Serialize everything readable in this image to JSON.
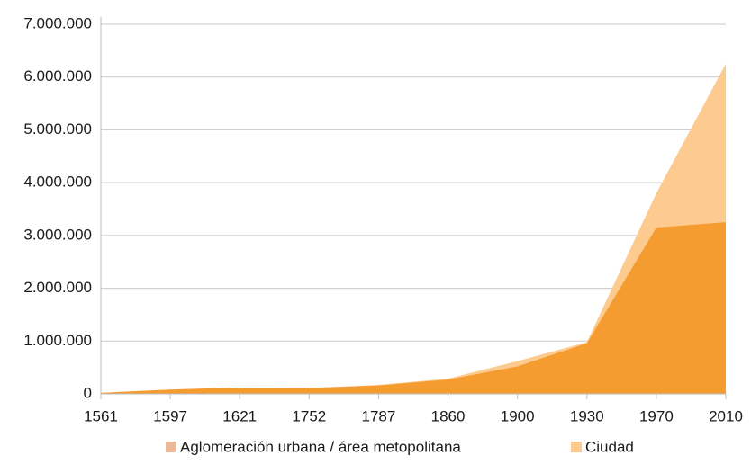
{
  "chart_data": {
    "type": "area",
    "categories": [
      "1561",
      "1597",
      "1621",
      "1752",
      "1787",
      "1860",
      "1900",
      "1930",
      "1970",
      "2010"
    ],
    "series": [
      {
        "name": "Aglomeración urbana / área metopolitana",
        "color": "#fdca8f",
        "legend_color": "#e9b99a",
        "values": [
          20000,
          80000,
          120000,
          110000,
          170000,
          290000,
          620000,
          980000,
          3800000,
          6250000
        ]
      },
      {
        "name": "Ciudad",
        "color": "#f59c31",
        "legend_color": "#fdca8f",
        "values": [
          20000,
          80000,
          120000,
          110000,
          160000,
          270000,
          520000,
          960000,
          3150000,
          3250000
        ]
      }
    ],
    "ylim": [
      0,
      7000000
    ],
    "yticks": [
      0,
      {
        "value": 1000000,
        "label": "1.000.000"
      },
      {
        "value": 2000000,
        "label": "2.000.000"
      },
      {
        "value": 3000000,
        "label": "3.000.000"
      },
      {
        "value": 4000000,
        "label": "4.000.000"
      },
      {
        "value": 5000000,
        "label": "5.000.000"
      },
      {
        "value": 6000000,
        "label": "6.000.000"
      },
      {
        "value": 7000000,
        "label": "7.000.000"
      }
    ],
    "grid": true
  }
}
